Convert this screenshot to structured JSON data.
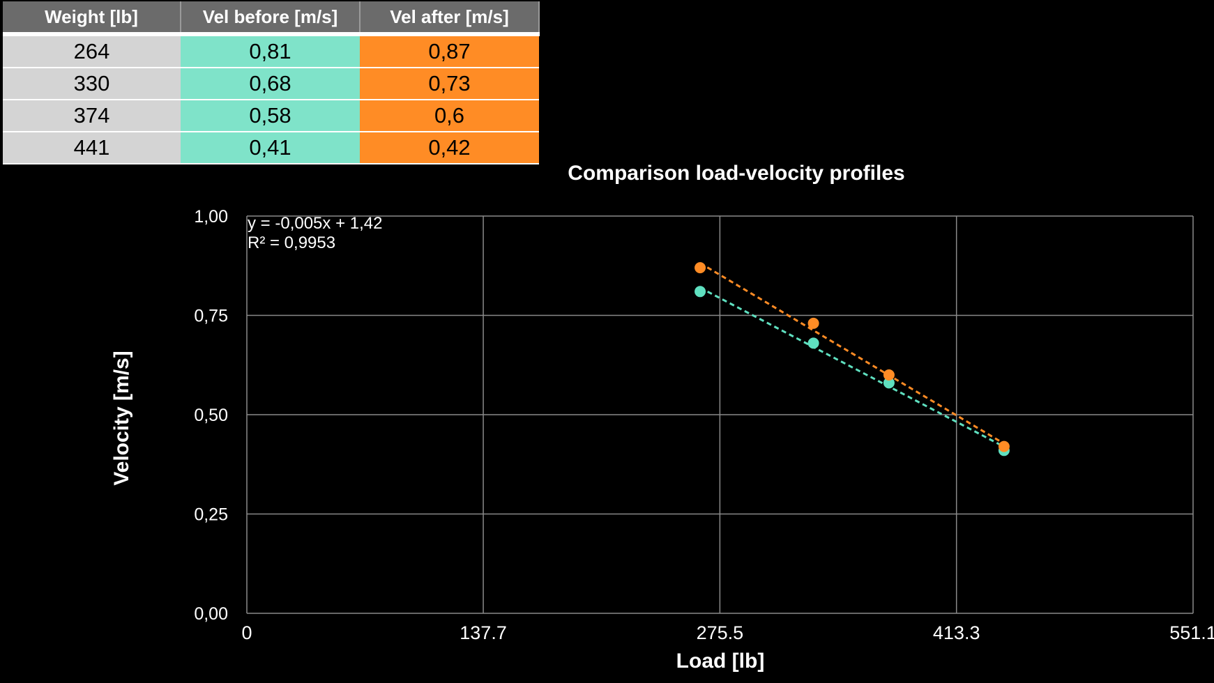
{
  "table": {
    "headers": [
      "Weight [lb]",
      "Vel before [m/s]",
      "Vel after [m/s]"
    ],
    "rows": [
      [
        "264",
        "0,81",
        "0,87"
      ],
      [
        "330",
        "0,68",
        "0,73"
      ],
      [
        "374",
        "0,58",
        "0,6"
      ],
      [
        "441",
        "0,41",
        "0,42"
      ]
    ]
  },
  "chart_data": {
    "type": "scatter",
    "title": "Comparison load-velocity profiles",
    "xlabel": "Load [lb]",
    "ylabel": "Velocity [m/s]",
    "xlim": [
      0,
      551.1
    ],
    "ylim": [
      0,
      1
    ],
    "x_ticks": [
      "0",
      "137.7",
      "275.5",
      "413.3",
      "551.1"
    ],
    "x_tick_values": [
      0,
      137.7,
      275.5,
      413.3,
      551.1
    ],
    "y_ticks": [
      "0,00",
      "0,25",
      "0,50",
      "0,75",
      "1,00"
    ],
    "y_tick_values": [
      0,
      0.25,
      0.5,
      0.75,
      1.0
    ],
    "grid": true,
    "x": [
      264,
      330,
      374,
      441
    ],
    "series": [
      {
        "values": [
          0.81,
          0.68,
          0.58,
          0.41
        ],
        "color": "#5fe0c0",
        "trendline": "linear dashed"
      },
      {
        "values": [
          0.87,
          0.73,
          0.6,
          0.42
        ],
        "color": "#ff8c25",
        "trendline": "linear dashed"
      }
    ],
    "annotation": {
      "equation": "y = -0,005x + 1,42",
      "r2": "R² = 0,9953"
    }
  },
  "colors": {
    "background": "#000000",
    "header": "#6b6b6b",
    "weight": "#d4d4d4",
    "before": "#7fe3c9",
    "after": "#ff8c25"
  }
}
